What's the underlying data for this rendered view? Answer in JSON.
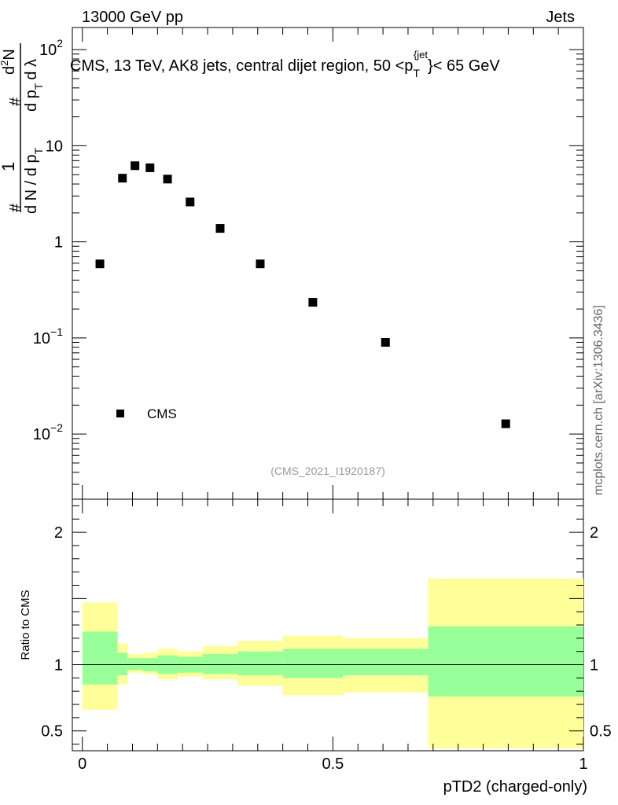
{
  "header": {
    "left": "13000 GeV pp",
    "right": "Jets"
  },
  "side_label": "mcplots.cern.ch [arXiv:1306.3436]",
  "chart_data": [
    {
      "type": "scatter",
      "title": "CMS, 13 TeV, AK8 jets, central dijet region, 50 <p_T^{jet}< 65 GeV",
      "title_parts": {
        "before": "CMS, 13 TeV, AK8 jets, central dijet region, 50 <p",
        "sub": "T",
        "sup": "{jet",
        "after": "}< 65 GeV"
      },
      "ylabel": "1/(dN/dp_T) d²N/(dp_T dλ)",
      "ylabel_parts": {
        "num_one": "1",
        "hash": "#",
        "den": "d N / d p",
        "sub_t": "T",
        "d2n": "d",
        "two": "2",
        "n": "N",
        "dp": "d p",
        "dlambda": "d λ"
      },
      "yscale": "log",
      "ylim": [
        0.0021,
        170
      ],
      "xlim": [
        -0.02,
        1.0
      ],
      "y_ticks": [
        {
          "value": 100,
          "label": "10",
          "exp": "2"
        },
        {
          "value": 10,
          "label": "10",
          "exp": ""
        },
        {
          "value": 1,
          "label": "1",
          "exp": ""
        },
        {
          "value": 0.1,
          "label": "10",
          "exp": "−1"
        },
        {
          "value": 0.01,
          "label": "10",
          "exp": "−2"
        }
      ],
      "series": [
        {
          "name": "CMS",
          "x": [
            0.035,
            0.08,
            0.105,
            0.135,
            0.17,
            0.215,
            0.275,
            0.355,
            0.46,
            0.605,
            0.845
          ],
          "y": [
            0.59,
            4.6,
            6.2,
            5.9,
            4.5,
            2.6,
            1.38,
            0.59,
            0.235,
            0.09,
            0.0128
          ],
          "color": "#000000"
        }
      ],
      "legend": {
        "position": "bottom-left",
        "entries": [
          "CMS"
        ]
      },
      "watermark": "(CMS_2021_I1920187)"
    },
    {
      "type": "area",
      "ylabel": "Ratio to CMS",
      "xlabel": "pTD2 (charged-only)",
      "xlim": [
        -0.02,
        1.0
      ],
      "ylim": [
        0.35,
        2.25
      ],
      "x_ticks": [
        {
          "value": 0,
          "label": "0"
        },
        {
          "value": 0.5,
          "label": "0.5"
        },
        {
          "value": 1,
          "label": "1"
        }
      ],
      "y_ticks": [
        {
          "value": 2,
          "label": "2"
        },
        {
          "value": 1,
          "label": "1"
        },
        {
          "value": 0.5,
          "label": "0.5"
        }
      ],
      "reference_line": 1,
      "bins": [
        {
          "lo": 0.0,
          "hi": 0.07,
          "inner": [
            0.85,
            1.25
          ],
          "outer": [
            0.66,
            1.47
          ]
        },
        {
          "lo": 0.07,
          "hi": 0.09,
          "inner": [
            0.92,
            1.09
          ],
          "outer": [
            0.85,
            1.16
          ]
        },
        {
          "lo": 0.09,
          "hi": 0.12,
          "inner": [
            0.96,
            1.05
          ],
          "outer": [
            0.94,
            1.08
          ]
        },
        {
          "lo": 0.12,
          "hi": 0.15,
          "inner": [
            0.95,
            1.05
          ],
          "outer": [
            0.93,
            1.09
          ]
        },
        {
          "lo": 0.15,
          "hi": 0.19,
          "inner": [
            0.93,
            1.07
          ],
          "outer": [
            0.89,
            1.12
          ]
        },
        {
          "lo": 0.19,
          "hi": 0.24,
          "inner": [
            0.94,
            1.06
          ],
          "outer": [
            0.91,
            1.1
          ]
        },
        {
          "lo": 0.24,
          "hi": 0.31,
          "inner": [
            0.93,
            1.08
          ],
          "outer": [
            0.89,
            1.14
          ]
        },
        {
          "lo": 0.31,
          "hi": 0.4,
          "inner": [
            0.92,
            1.1
          ],
          "outer": [
            0.84,
            1.18
          ]
        },
        {
          "lo": 0.4,
          "hi": 0.52,
          "inner": [
            0.9,
            1.12
          ],
          "outer": [
            0.77,
            1.22
          ]
        },
        {
          "lo": 0.52,
          "hi": 0.69,
          "inner": [
            0.92,
            1.12
          ],
          "outer": [
            0.79,
            1.2
          ]
        },
        {
          "lo": 0.69,
          "hi": 1.0,
          "inner": [
            0.76,
            1.29
          ],
          "outer": [
            0.37,
            1.65
          ]
        }
      ],
      "colors": {
        "inner": "#99ff99",
        "outer": "#ffff99",
        "line": "#000000"
      }
    }
  ]
}
